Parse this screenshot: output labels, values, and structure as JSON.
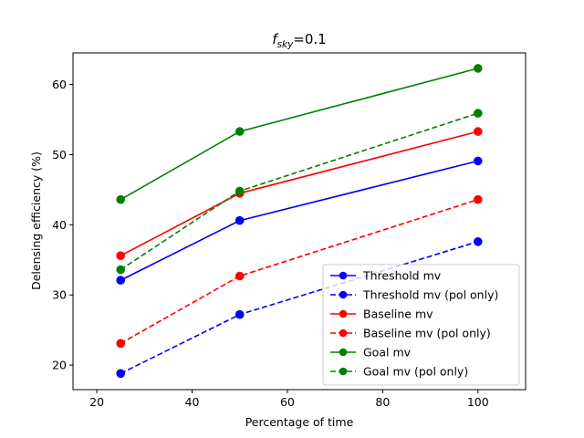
{
  "chart_data": {
    "type": "line",
    "title": {
      "symbol": "f",
      "subscript": "sky",
      "suffix": "=0.1"
    },
    "xlabel": "Percentage of time",
    "ylabel": "Delensing efficiency (%)",
    "xlim": [
      15,
      110
    ],
    "ylim": [
      16.5,
      64.5
    ],
    "xticks": [
      20,
      40,
      60,
      80,
      100
    ],
    "yticks": [
      20,
      30,
      40,
      50,
      60
    ],
    "grid": false,
    "legend_position": "lower-right",
    "x": [
      25,
      50,
      100
    ],
    "series": [
      {
        "name": "Threshold mv",
        "color": "#0000ff",
        "dashed": false,
        "values": [
          32.1,
          40.6,
          49.1
        ]
      },
      {
        "name": "Threshold mv (pol only)",
        "color": "#0000ff",
        "dashed": true,
        "values": [
          18.8,
          27.2,
          37.6
        ]
      },
      {
        "name": "Baseline mv",
        "color": "#ff0000",
        "dashed": false,
        "values": [
          35.6,
          44.5,
          53.3
        ]
      },
      {
        "name": "Baseline mv (pol only)",
        "color": "#ff0000",
        "dashed": true,
        "values": [
          23.1,
          32.7,
          43.6
        ]
      },
      {
        "name": "Goal mv",
        "color": "#008000",
        "dashed": false,
        "values": [
          43.6,
          53.3,
          62.3
        ]
      },
      {
        "name": "Goal mv (pol only)",
        "color": "#008000",
        "dashed": true,
        "values": [
          33.6,
          44.8,
          55.9
        ]
      }
    ]
  }
}
